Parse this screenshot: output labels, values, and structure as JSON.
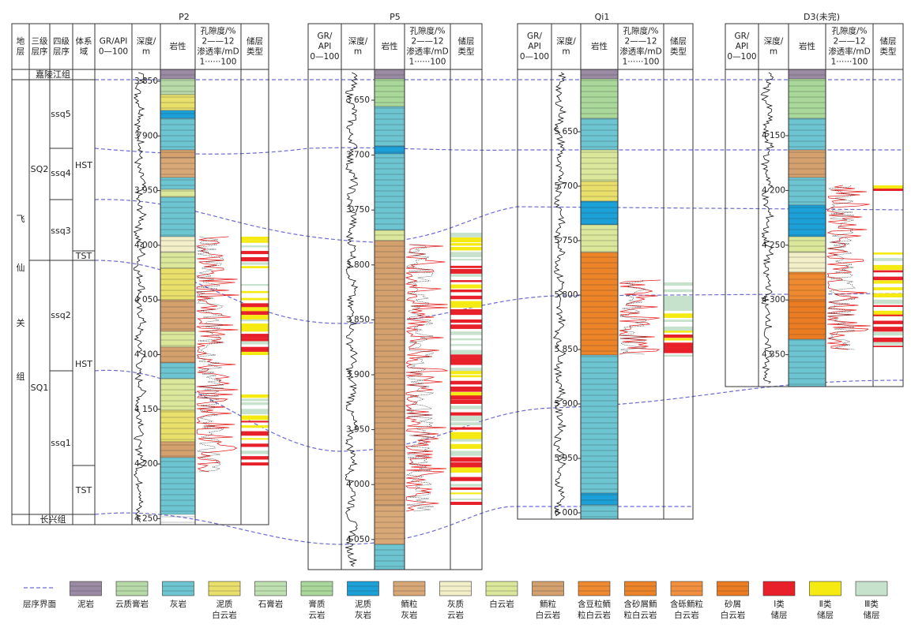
{
  "wells": [
    {
      "name": "P2",
      "columns": [
        [
          "地",
          "层"
        ],
        [
          "三级",
          "层序"
        ],
        [
          "四级",
          "层序"
        ],
        [
          "体系",
          "域"
        ],
        [
          "GR/API",
          "0—100"
        ],
        [
          "深度/",
          "m"
        ],
        [
          "岩性"
        ],
        [
          "孔隙度/%",
          "2——12",
          "渗透率/mD",
          "1······100"
        ],
        [
          "储层",
          "类型"
        ]
      ],
      "depths": [
        "3 850",
        "3 900",
        "3 950",
        "4 000",
        "4 050",
        "4 100",
        "4 150",
        "4 200",
        "4 250"
      ]
    },
    {
      "name": "P5",
      "columns": [
        [
          "GR/",
          "API",
          "0—100"
        ],
        [
          "深度/",
          "m"
        ],
        [
          "岩性"
        ],
        [
          "孔隙度/%",
          "2——12",
          "渗透率/mD",
          "1······100"
        ],
        [
          "储层",
          "类型"
        ]
      ],
      "depths": [
        "3 650",
        "3 700",
        "3 750",
        "3 800",
        "3 850",
        "3 900",
        "3 950",
        "4 000",
        "4 050"
      ]
    },
    {
      "name": "Qi1",
      "columns": [
        [
          "GR/",
          "API",
          "0—100"
        ],
        [
          "深度/",
          "m"
        ],
        [
          "岩性"
        ],
        [
          "孔隙度/%",
          "2——12",
          "渗透率/mD",
          "1······100"
        ],
        [
          "储层",
          "类型"
        ]
      ],
      "depths": [
        "5 650",
        "5 700",
        "5 750",
        "5 800",
        "5 850",
        "5 900",
        "5 950",
        "6 000"
      ]
    },
    {
      "name": "D3(未完)",
      "columns": [
        [
          "GR/",
          "API",
          "0—100"
        ],
        [
          "深度/",
          "m"
        ],
        [
          "岩性"
        ],
        [
          "孔隙度/%",
          "2——12",
          "渗透率/mD",
          "1······100"
        ],
        [
          "储层",
          "类型"
        ]
      ],
      "depths": [
        "4 150",
        "4 200",
        "4 250",
        "4 300",
        "4 350"
      ]
    }
  ],
  "stratigraphy": {
    "top": "嘉陵江组",
    "bottom": "长兴组",
    "formation": [
      "飞",
      "仙",
      "关",
      "组"
    ],
    "sq": [
      "SQ2",
      "SQ1"
    ],
    "ssq": [
      "ssq5",
      "ssq4",
      "ssq3",
      "ssq2",
      "ssq1"
    ],
    "systems": [
      "HST",
      "TST",
      "HST",
      "TST"
    ]
  },
  "legend": [
    {
      "label": [
        "层序界面"
      ],
      "color": "#ffffff"
    },
    {
      "label": [
        "泥岩"
      ],
      "color": "#9b8aa3"
    },
    {
      "label": [
        "云质膏岩"
      ],
      "color": "#b8d9a8"
    },
    {
      "label": [
        "灰岩"
      ],
      "color": "#6cc5d1"
    },
    {
      "label": [
        "泥质",
        "白云岩"
      ],
      "color": "#e8e06a"
    },
    {
      "label": [
        "石膏岩"
      ],
      "color": "#bfe0b0"
    },
    {
      "label": [
        "膏质",
        "云岩"
      ],
      "color": "#a9d89a"
    },
    {
      "label": [
        "泥质",
        "灰岩"
      ],
      "color": "#1ba0d8"
    },
    {
      "label": [
        "鲕粒",
        "灰岩"
      ],
      "color": "#d9a877"
    },
    {
      "label": [
        "灰质",
        "云岩"
      ],
      "color": "#f3efc8"
    },
    {
      "label": [
        "白云岩"
      ],
      "color": "#dbe79a"
    },
    {
      "label": [
        "鲕粒",
        "白云岩"
      ],
      "color": "#d4a06e"
    },
    {
      "label": [
        "含豆粒鲕",
        "粒白云岩"
      ],
      "color": "#f08a30"
    },
    {
      "label": [
        "含砂屑鲕",
        "粒白云岩"
      ],
      "color": "#ee8428"
    },
    {
      "label": [
        "含砾鲕粒",
        "白云岩"
      ],
      "color": "#f29040"
    },
    {
      "label": [
        "砂屑",
        "白云岩"
      ],
      "color": "#ec7c22"
    },
    {
      "label": [
        "Ⅰ类",
        "储层"
      ],
      "color": "#e8202a"
    },
    {
      "label": [
        "Ⅱ类",
        "储层"
      ],
      "color": "#f5ea12"
    },
    {
      "label": [
        "Ⅲ类",
        "储层"
      ],
      "color": "#c6e2cc"
    }
  ]
}
